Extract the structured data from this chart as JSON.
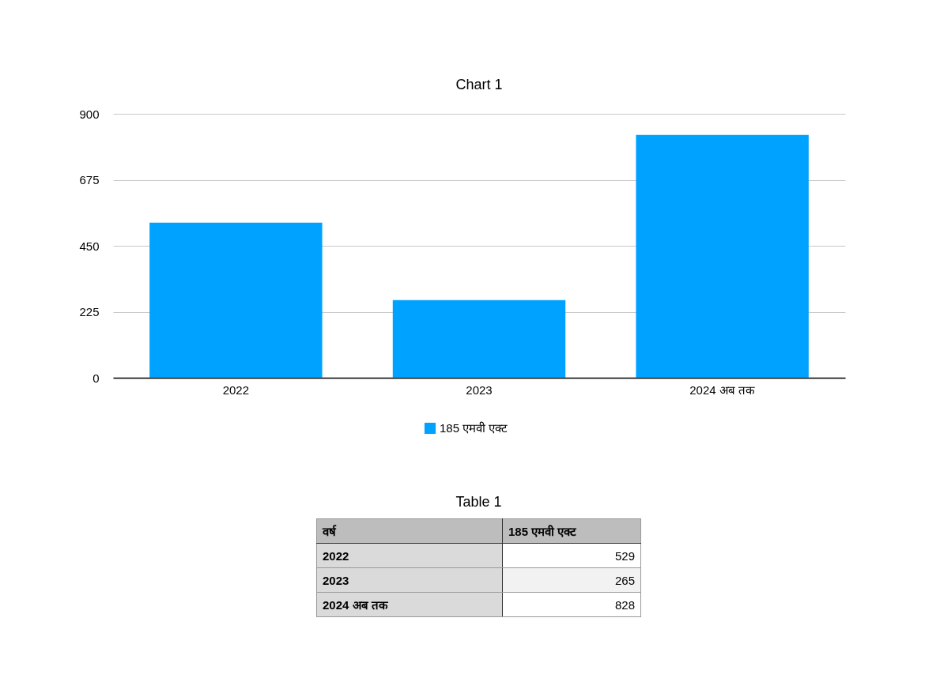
{
  "chart_data": [
    {
      "type": "bar",
      "title": "Chart 1",
      "categories": [
        "2022",
        "2023",
        "2024 अब तक"
      ],
      "series": [
        {
          "name": "185 एमवी एक्ट",
          "color": "#00a2ff",
          "values": [
            529,
            265,
            828
          ]
        }
      ],
      "ylim": [
        0,
        900
      ],
      "yticks": [
        0,
        225,
        450,
        675,
        900
      ],
      "grid": "y",
      "legend": "bottom"
    },
    {
      "type": "other",
      "title": "Table 1",
      "annotations": [
        "वर्ष"
      ],
      "data_labels": true,
      "categories": [
        "2022",
        "2023",
        "2024 अब तक"
      ],
      "series": [
        {
          "name": "185 एमवी एक्ट",
          "values": [
            529,
            265,
            828
          ]
        }
      ]
    }
  ]
}
